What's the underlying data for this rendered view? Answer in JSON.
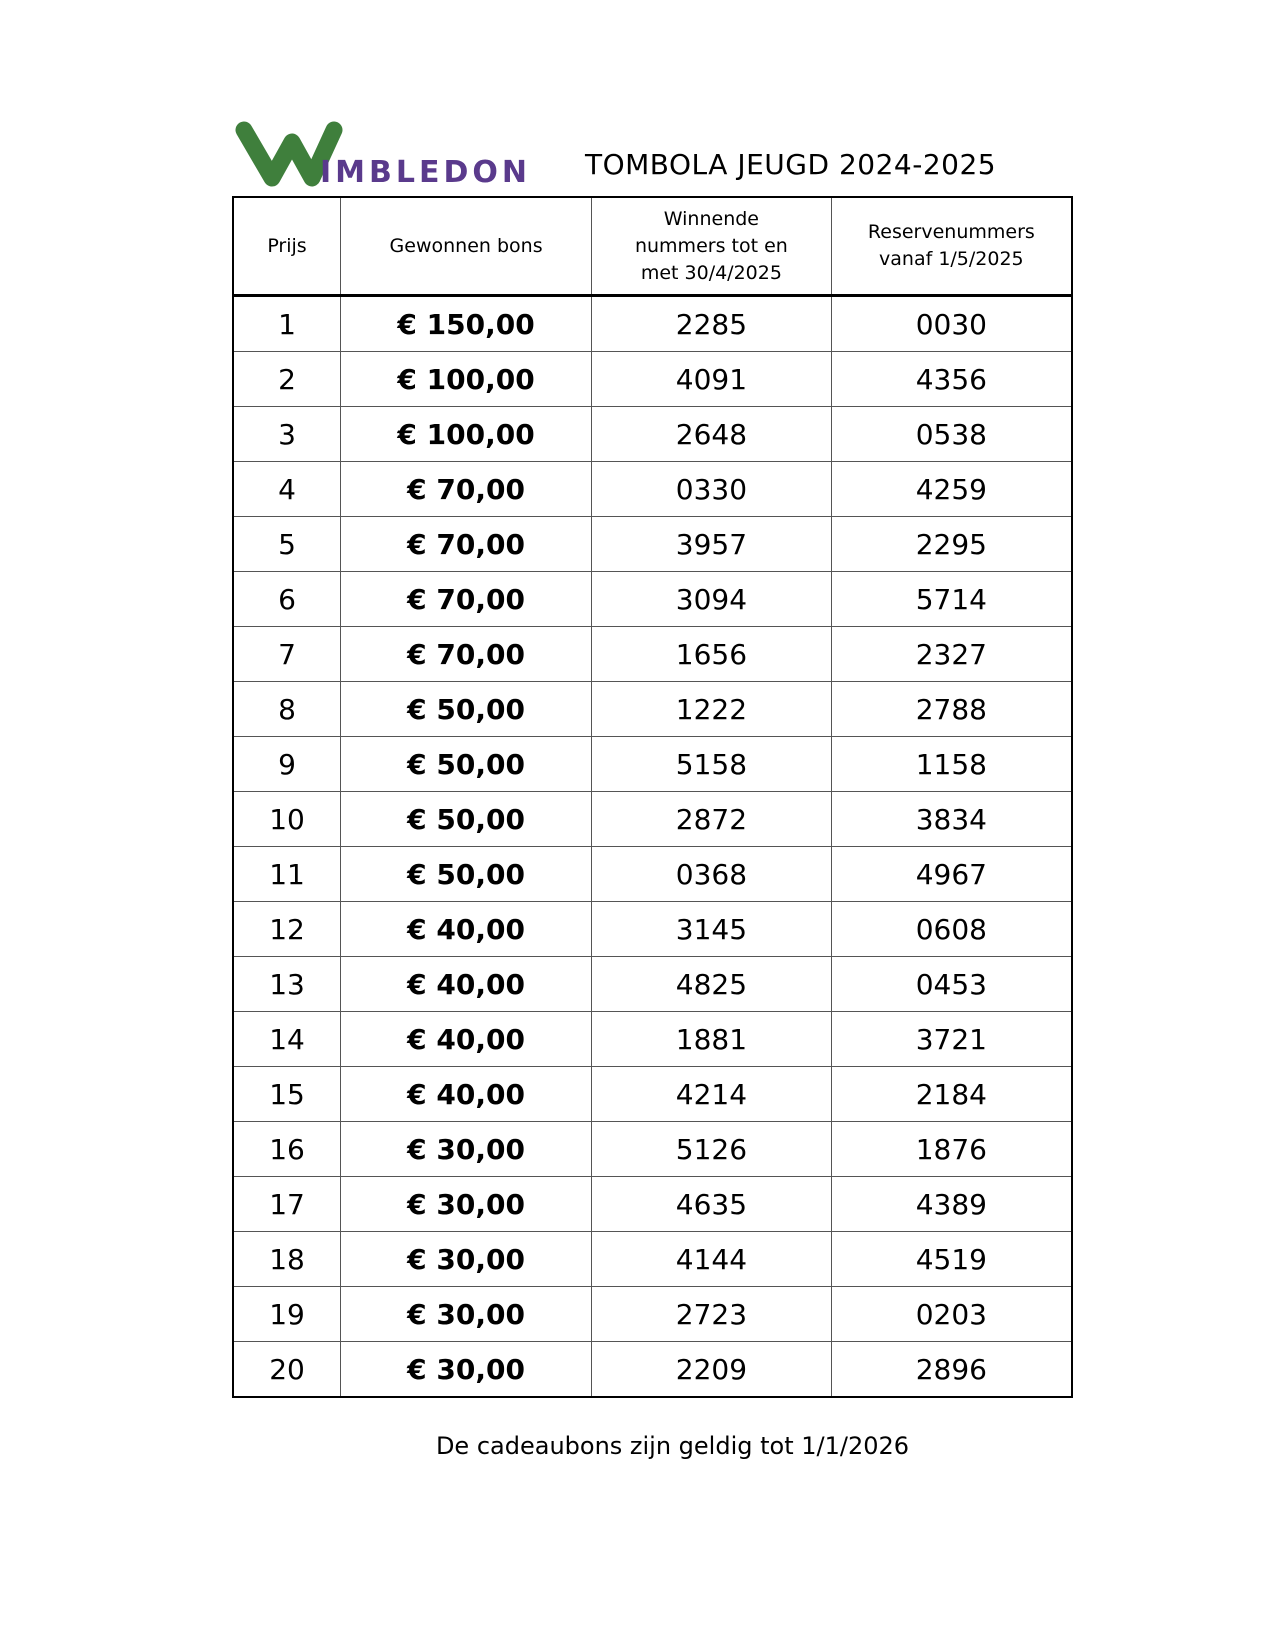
{
  "logo": {
    "text": "WIMBLEDON",
    "colors": {
      "w": "#3f7f3c",
      "letters": "#5a3a8c"
    }
  },
  "title": "TOMBOLA JEUGD 2024-2025",
  "table": {
    "headers": [
      "Prijs",
      "Gewonnen bons",
      "Winnende nummers tot en met 30/4/2025",
      "Reservenummers vanaf 1/5/2025"
    ],
    "rows": [
      [
        "1",
        "€ 150,00",
        "2285",
        "0030"
      ],
      [
        "2",
        "€ 100,00",
        "4091",
        "4356"
      ],
      [
        "3",
        "€ 100,00",
        "2648",
        "0538"
      ],
      [
        "4",
        "€ 70,00",
        "0330",
        "4259"
      ],
      [
        "5",
        "€ 70,00",
        "3957",
        "2295"
      ],
      [
        "6",
        "€ 70,00",
        "3094",
        "5714"
      ],
      [
        "7",
        "€ 70,00",
        "1656",
        "2327"
      ],
      [
        "8",
        "€ 50,00",
        "1222",
        "2788"
      ],
      [
        "9",
        "€ 50,00",
        "5158",
        "1158"
      ],
      [
        "10",
        "€ 50,00",
        "2872",
        "3834"
      ],
      [
        "11",
        "€ 50,00",
        "0368",
        "4967"
      ],
      [
        "12",
        "€ 40,00",
        "3145",
        "0608"
      ],
      [
        "13",
        "€ 40,00",
        "4825",
        "0453"
      ],
      [
        "14",
        "€ 40,00",
        "1881",
        "3721"
      ],
      [
        "15",
        "€ 40,00",
        "4214",
        "2184"
      ],
      [
        "16",
        "€ 30,00",
        "5126",
        "1876"
      ],
      [
        "17",
        "€ 30,00",
        "4635",
        "4389"
      ],
      [
        "18",
        "€ 30,00",
        "4144",
        "4519"
      ],
      [
        "19",
        "€ 30,00",
        "2723",
        "0203"
      ],
      [
        "20",
        "€ 30,00",
        "2209",
        "2896"
      ]
    ]
  },
  "footer": "De cadeaubons zijn geldig tot 1/1/2026"
}
